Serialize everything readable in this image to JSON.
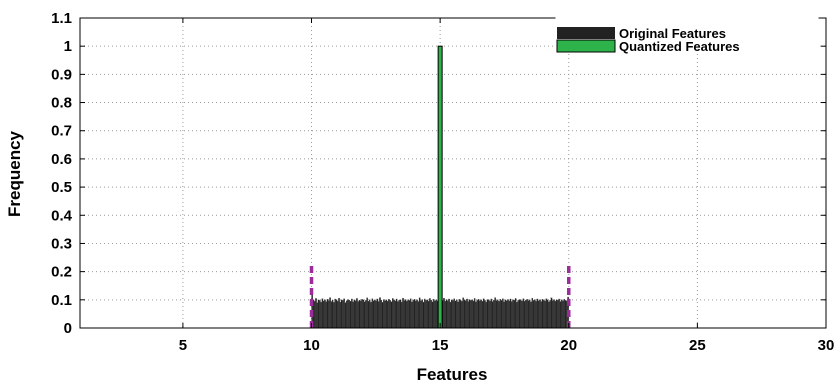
{
  "chart_data": {
    "type": "bar",
    "title": "",
    "xlabel": "Features",
    "ylabel": "Frequency",
    "xlim": [
      1,
      30
    ],
    "ylim": [
      0,
      1.1
    ],
    "xticks": [
      5,
      10,
      15,
      20,
      25,
      30
    ],
    "yticks": [
      0,
      0.1,
      0.2,
      0.3,
      0.4,
      0.5,
      0.6,
      0.7,
      0.8,
      0.9,
      1,
      1.1
    ],
    "grid": true,
    "legend_position": "top-right",
    "series": [
      {
        "name": "Original Features",
        "color": "#222222",
        "bin_range": [
          10,
          20
        ],
        "bin_width": 0.05,
        "values": [
          0.12,
          0.1,
          0.095,
          0.105,
          0.09,
          0.1,
          0.098,
          0.092,
          0.104,
          0.096,
          0.1,
          0.093,
          0.102,
          0.097,
          0.108,
          0.094,
          0.099,
          0.091,
          0.103,
          0.1,
          0.095,
          0.106,
          0.092,
          0.1,
          0.098,
          0.104,
          0.09,
          0.097,
          0.101,
          0.099,
          0.095,
          0.103,
          0.093,
          0.1,
          0.097,
          0.105,
          0.094,
          0.099,
          0.096,
          0.102,
          0.1,
          0.093,
          0.098,
          0.107,
          0.095,
          0.1,
          0.092,
          0.104,
          0.097,
          0.1,
          0.096,
          0.103,
          0.094,
          0.108,
          0.099,
          0.091,
          0.101,
          0.097,
          0.1,
          0.095,
          0.102,
          0.098,
          0.093,
          0.105,
          0.1,
          0.096,
          0.103,
          0.094,
          0.099,
          0.1,
          0.092,
          0.106,
          0.097,
          0.101,
          0.095,
          0.1,
          0.098,
          0.104,
          0.093,
          0.099,
          0.102,
          0.096,
          0.1,
          0.094,
          0.107,
          0.097,
          0.101,
          0.092,
          0.103,
          0.098,
          0.1,
          0.095,
          0.105,
          0.099,
          0.093,
          0.102,
          0.097,
          0.1,
          0.096,
          0.104,
          0.1,
          0.094,
          0.098,
          0.106,
          0.095,
          0.101,
          0.097,
          0.103,
          0.092,
          0.1,
          0.098,
          0.104,
          0.096,
          0.1,
          0.093,
          0.102,
          0.099,
          0.095,
          0.107,
          0.1,
          0.097,
          0.103,
          0.094,
          0.101,
          0.098,
          0.1,
          0.096,
          0.105,
          0.093,
          0.099,
          0.102,
          0.097,
          0.1,
          0.095,
          0.104,
          0.098,
          0.092,
          0.101,
          0.1,
          0.096,
          0.103,
          0.094,
          0.099,
          0.108,
          0.097,
          0.1,
          0.095,
          0.102,
          0.098,
          0.104,
          0.093,
          0.1,
          0.097,
          0.101,
          0.096,
          0.103,
          0.094,
          0.1,
          0.099,
          0.105,
          0.092,
          0.098,
          0.101,
          0.1,
          0.096,
          0.104,
          0.095,
          0.099,
          0.102,
          0.097,
          0.1,
          0.093,
          0.106,
          0.098,
          0.101,
          0.095,
          0.103,
          0.097,
          0.1,
          0.094,
          0.102,
          0.099,
          0.096,
          0.104,
          0.1,
          0.093,
          0.098,
          0.107,
          0.097,
          0.101,
          0.095,
          0.1,
          0.099,
          0.103,
          0.094,
          0.1,
          0.097,
          0.102,
          0.098,
          0.096,
          0.11
        ]
      },
      {
        "name": "Quantized Features",
        "color": "#2db34a",
        "x": [
          15
        ],
        "values": [
          1.0
        ]
      }
    ],
    "boundary_lines": {
      "color": "#9b2d9b",
      "x": [
        10,
        20
      ],
      "y_top": 0.23
    }
  }
}
